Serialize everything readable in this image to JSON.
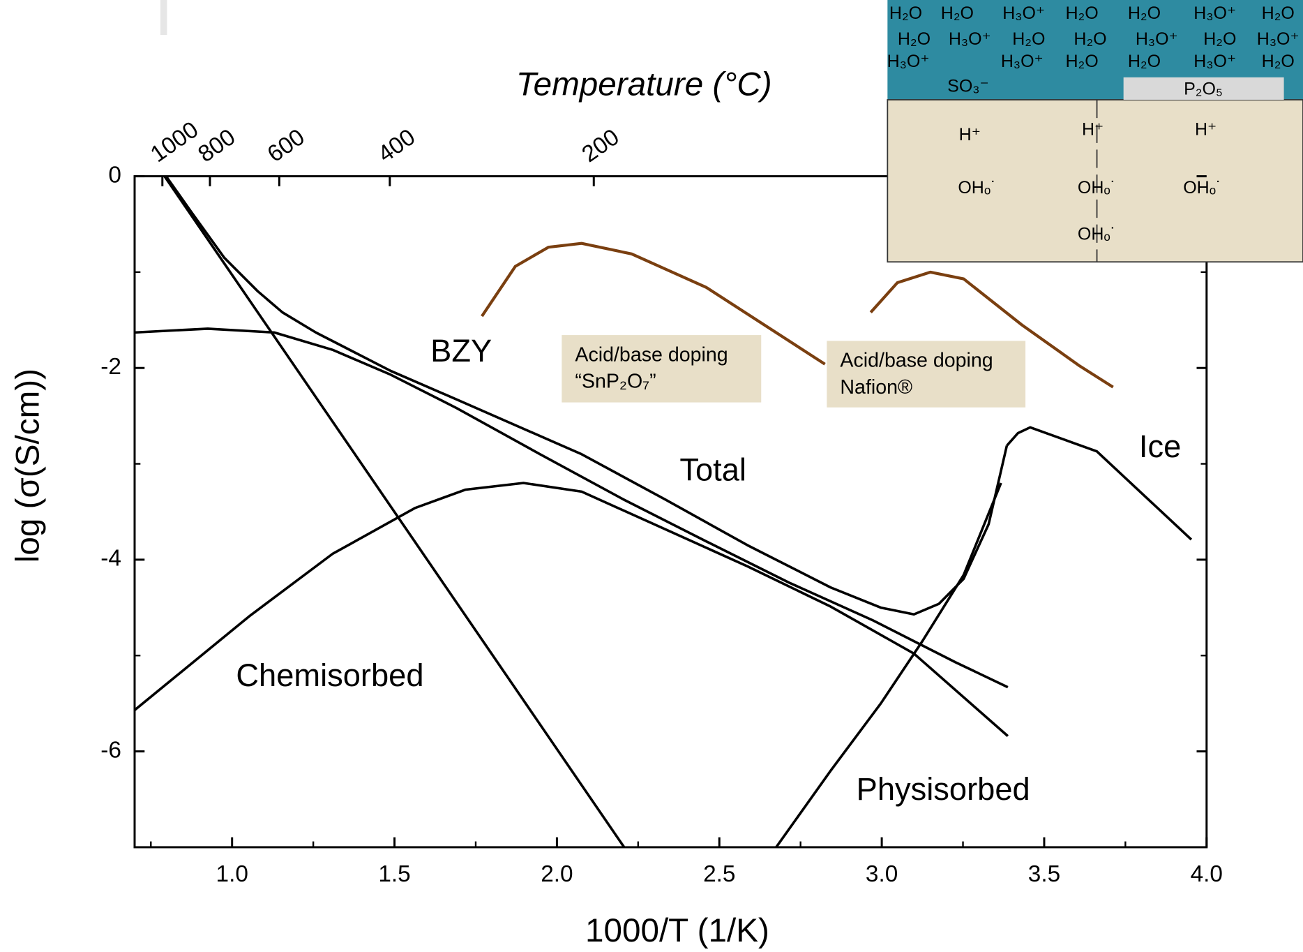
{
  "chart_data": {
    "type": "line",
    "xlabel": "1000/T (1/K)",
    "ylabel": "log (σ(S/cm))",
    "x2label": "Temperature (°C)",
    "xlim": [
      0.7,
      4.0
    ],
    "ylim": [
      -7,
      0
    ],
    "xticks": [
      {
        "value": 1,
        "label": "1.0"
      },
      {
        "value": 1.5,
        "label": "1.5"
      },
      {
        "value": 2,
        "label": "2.0"
      },
      {
        "value": 2.5,
        "label": "2.5"
      },
      {
        "value": 3,
        "label": "3.0"
      },
      {
        "value": 3.5,
        "label": "3.5"
      },
      {
        "value": 4,
        "label": "4.0"
      }
    ],
    "xminorticks": [
      0.75,
      1.25,
      1.75,
      2.25,
      2.75,
      3.25,
      3.75
    ],
    "yticks": [
      0,
      -2,
      -4,
      -6
    ],
    "yminorticks": [
      -1,
      -3,
      -5
    ],
    "x2ticks": [
      1000,
      800,
      600,
      400,
      200
    ],
    "series": [
      {
        "name": "Total",
        "color": "#000000",
        "x": [
          0.797,
          0.874,
          0.976,
          1.079,
          1.155,
          1.258,
          1.488,
          1.692,
          2.076,
          2.332,
          2.587,
          2.843,
          2.997,
          3.099,
          3.176,
          3.252,
          3.329,
          3.385
        ],
        "y": [
          0,
          -0.37,
          -0.85,
          -1.2,
          -1.42,
          -1.63,
          -2.03,
          -2.33,
          -2.9,
          -3.37,
          -3.85,
          -4.29,
          -4.5,
          -4.57,
          -4.46,
          -4.2,
          -3.63,
          -2.81
        ]
      },
      {
        "name": "BZY",
        "color": "#000000",
        "x": [
          0.7,
          0.925,
          1.13,
          1.309,
          1.488,
          1.692,
          1.948,
          2.204,
          2.46,
          2.715,
          2.971,
          3.227,
          3.388
        ],
        "y": [
          -1.63,
          -1.59,
          -1.63,
          -1.81,
          -2.07,
          -2.42,
          -2.9,
          -3.37,
          -3.81,
          -4.24,
          -4.63,
          -5.07,
          -5.33
        ]
      },
      {
        "color": "#000000",
        "x": [
          0.792,
          2.207
        ],
        "y": [
          0,
          -7
        ]
      },
      {
        "name": "Chemisorbed",
        "color": "#000000",
        "x": [
          0.7,
          1.053,
          1.309,
          1.564,
          1.718,
          1.897,
          2.076,
          2.332,
          2.587,
          2.843,
          3.099,
          3.388
        ],
        "y": [
          -5.57,
          -4.59,
          -3.94,
          -3.46,
          -3.27,
          -3.2,
          -3.29,
          -3.68,
          -4.07,
          -4.49,
          -4.98,
          -5.84
        ]
      },
      {
        "name": "Physisorbed",
        "color": "#000000",
        "x": [
          2.675,
          2.843,
          2.997,
          3.125,
          3.252,
          3.367
        ],
        "y": [
          -7,
          -6.2,
          -5.5,
          -4.85,
          -4.16,
          -3.2
        ]
      },
      {
        "name": "Ice",
        "color": "#000000",
        "x": [
          3.385,
          3.419,
          3.457,
          3.662,
          3.953
        ],
        "y": [
          -2.81,
          -2.68,
          -2.62,
          -2.87,
          -3.79
        ]
      },
      {
        "color": "#7a3f10",
        "x": [
          1.769,
          1.872,
          1.974,
          2.076,
          2.23,
          2.46,
          2.825
        ],
        "y": [
          -1.46,
          -0.94,
          -0.74,
          -0.7,
          -0.81,
          -1.16,
          -1.96
        ]
      },
      {
        "color": "#7a3f10",
        "x": [
          2.966,
          3.048,
          3.15,
          3.252,
          3.431,
          3.61,
          3.712
        ],
        "y": [
          -1.42,
          -1.11,
          -1.0,
          -1.07,
          -1.55,
          -1.98,
          -2.2
        ]
      }
    ],
    "annotations": [
      [
        "Acid/base doping",
        "“SnP₂O₇”"
      ],
      [
        "Acid/base doping",
        "Nafion®"
      ]
    ]
  },
  "inset": {
    "water": [
      [
        "H₂O",
        "H₂O",
        "H₃O⁺",
        "H₂O",
        "H₂O",
        "H₃O⁺",
        "H₂O"
      ],
      [
        "H₂O",
        "H₃O⁺",
        "H₂O",
        "H₂O",
        "H₃O⁺",
        "H₂O",
        "H₃O⁺"
      ],
      [
        "H₃O⁺",
        "H₃O⁺",
        "H₂O",
        "H₂O",
        "H₃O⁺",
        "H₂O"
      ]
    ],
    "surface": [
      "SO₃⁻",
      "P₂O₅"
    ],
    "bulk": [
      "H⁺",
      "H⁺",
      "H⁺",
      "OHₒ˙",
      "OHₒ˙",
      "OHₒ˙",
      "OHₒ˙"
    ]
  }
}
